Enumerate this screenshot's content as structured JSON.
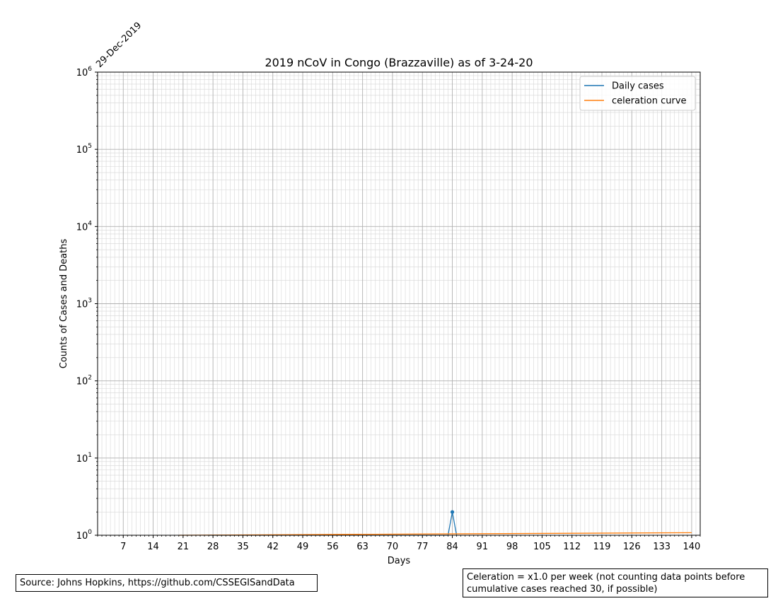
{
  "chart_data": {
    "type": "line",
    "title": "2019 nCoV in Congo (Brazzaville) as of 3-24-20",
    "xlabel": "Days",
    "ylabel": "Counts of Cases and Deaths",
    "start_date_label": "29-Dec-2019",
    "x_range": [
      1,
      142
    ],
    "y_range": [
      1,
      1000000
    ],
    "y_scale": "log",
    "grid": true,
    "legend_position": "top-right",
    "x_ticks": [
      7,
      14,
      21,
      28,
      35,
      42,
      49,
      56,
      63,
      70,
      77,
      84,
      91,
      98,
      105,
      112,
      119,
      126,
      133,
      140
    ],
    "y_ticks": [
      {
        "value": 1,
        "base": "10",
        "exp": "0"
      },
      {
        "value": 10,
        "base": "10",
        "exp": "1"
      },
      {
        "value": 100,
        "base": "10",
        "exp": "2"
      },
      {
        "value": 1000,
        "base": "10",
        "exp": "3"
      },
      {
        "value": 10000,
        "base": "10",
        "exp": "4"
      },
      {
        "value": 100000,
        "base": "10",
        "exp": "5"
      },
      {
        "value": 1000000,
        "base": "10",
        "exp": "6"
      }
    ],
    "series": [
      {
        "name": "Daily cases",
        "color": "#1f77b4",
        "x": [
          27,
          28,
          29,
          30,
          31,
          32,
          33,
          34,
          35,
          36,
          37,
          38,
          39,
          40,
          41,
          42,
          43,
          44,
          45,
          46,
          47,
          48,
          49,
          50,
          51,
          52,
          53,
          54,
          55,
          56,
          57,
          58,
          59,
          60,
          61,
          62,
          63,
          64,
          65,
          66,
          67,
          68,
          69,
          70,
          71,
          72,
          73,
          74,
          75,
          76,
          77,
          78,
          79,
          80,
          81,
          82,
          83,
          84,
          85
        ],
        "y": [
          1,
          1,
          1,
          1,
          1,
          1,
          1,
          1,
          1,
          1,
          1,
          1,
          1,
          1,
          1,
          1,
          1,
          1,
          1,
          1,
          1,
          1,
          1,
          1,
          1,
          1,
          1,
          1,
          1,
          1,
          1,
          1,
          1,
          1,
          1,
          1,
          1,
          1,
          1,
          1,
          1,
          1,
          1,
          1,
          1,
          1,
          1,
          1,
          1,
          1,
          1,
          1,
          1,
          1,
          1,
          1,
          1,
          2,
          1
        ]
      },
      {
        "name": "celeration curve",
        "color": "#ff7f0e",
        "x": [
          20,
          140
        ],
        "y": [
          1,
          1.08
        ]
      }
    ]
  },
  "notes": {
    "source": "Source: Johns Hopkins, https://github.com/CSSEGISandData",
    "celeration": "Celeration = x1.0 per week (not counting data points before cumulative cases reached 30, if possible)"
  }
}
